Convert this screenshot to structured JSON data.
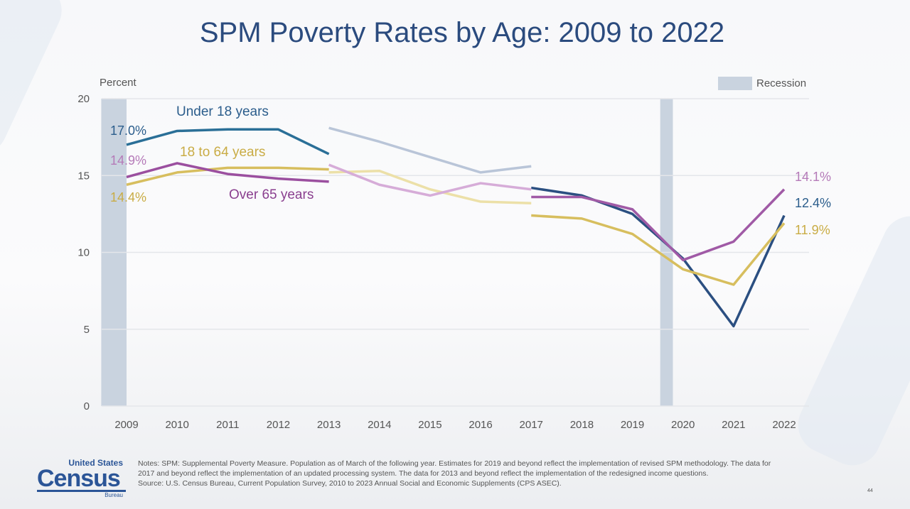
{
  "chart_data": {
    "type": "line",
    "title": "SPM Poverty Rates by Age: 2009 to 2022",
    "ylabel": "Percent",
    "xlabel": "",
    "ylim": [
      0,
      20
    ],
    "yticks": [
      "0",
      "5",
      "10",
      "15",
      "20"
    ],
    "x": [
      2009,
      2010,
      2011,
      2012,
      2013,
      2014,
      2015,
      2016,
      2017,
      2018,
      2019,
      2020,
      2021,
      2022
    ],
    "xticks": [
      "2009",
      "2010",
      "2011",
      "2012",
      "2013",
      "2014",
      "2015",
      "2016",
      "2017",
      "2018",
      "2019",
      "2020",
      "2021",
      "2022"
    ],
    "grid": "horizontal",
    "legend": {
      "label": "Recession",
      "position": "top-right",
      "color": "#c9d3df"
    },
    "recessions": [
      [
        2008.5,
        2009.0
      ],
      [
        2019.55,
        2019.8
      ]
    ],
    "series": [
      {
        "name": "Under 18 years",
        "color": "#2a6f97",
        "color_light": "#b9c5d8",
        "color_late": "#2b4f81",
        "start_label": "17.0%",
        "end_label": "12.4%",
        "segments": [
          {
            "x": [
              2009,
              2010,
              2011,
              2012,
              2013
            ],
            "y": [
              17.0,
              17.9,
              18.0,
              18.0,
              16.4
            ]
          },
          {
            "x": [
              2013,
              2014,
              2015,
              2016,
              2017
            ],
            "y": [
              18.1,
              17.2,
              16.2,
              15.2,
              15.6
            ],
            "light": true
          },
          {
            "x": [
              2017,
              2018,
              2019,
              2020,
              2021,
              2022
            ],
            "y": [
              14.2,
              13.7,
              12.5,
              9.6,
              5.2,
              12.4
            ]
          }
        ]
      },
      {
        "name": "18 to 64 years",
        "color": "#d7be5e",
        "color_light": "#ece0a8",
        "color_late": "#d7be5e",
        "start_label": "14.4%",
        "end_label": "11.9%",
        "segments": [
          {
            "x": [
              2009,
              2010,
              2011,
              2012,
              2013
            ],
            "y": [
              14.4,
              15.2,
              15.5,
              15.5,
              15.4
            ]
          },
          {
            "x": [
              2013,
              2014,
              2015,
              2016,
              2017
            ],
            "y": [
              15.2,
              15.3,
              14.1,
              13.3,
              13.2
            ],
            "light": true
          },
          {
            "x": [
              2017,
              2018,
              2019,
              2020,
              2021,
              2022
            ],
            "y": [
              12.4,
              12.2,
              11.2,
              8.9,
              7.9,
              11.9
            ]
          }
        ]
      },
      {
        "name": "Over 65 years",
        "color": "#9b4f9f",
        "color_light": "#d6acd8",
        "color_late": "#a05aa6",
        "start_label": "14.9%",
        "end_label": "14.1%",
        "segments": [
          {
            "x": [
              2009,
              2010,
              2011,
              2012,
              2013
            ],
            "y": [
              14.9,
              15.8,
              15.1,
              14.8,
              14.6
            ]
          },
          {
            "x": [
              2013,
              2014,
              2015,
              2016,
              2017
            ],
            "y": [
              15.7,
              14.4,
              13.7,
              14.5,
              14.1
            ],
            "light": true
          },
          {
            "x": [
              2017,
              2018,
              2019,
              2020,
              2021,
              2022
            ],
            "y": [
              13.6,
              13.6,
              12.8,
              9.5,
              10.7,
              14.1
            ]
          }
        ]
      }
    ]
  },
  "footer": {
    "logo_top": "United States",
    "logo_main": "Census",
    "logo_bottom": "Bureau",
    "notes": "Notes: SPM: Supplemental Poverty Measure. Population as of March of the following year. Estimates for 2019 and beyond reflect the implementation of revised SPM methodology. The data for 2017 and beyond reflect the implementation of an updated processing system. The data for 2013 and beyond reflect the implementation of the redesigned income questions.",
    "source": "Source: U.S. Census Bureau, Current Population Survey, 2010 to 2023 Annual Social and Economic Supplements (CPS ASEC).",
    "page_number": "44"
  }
}
